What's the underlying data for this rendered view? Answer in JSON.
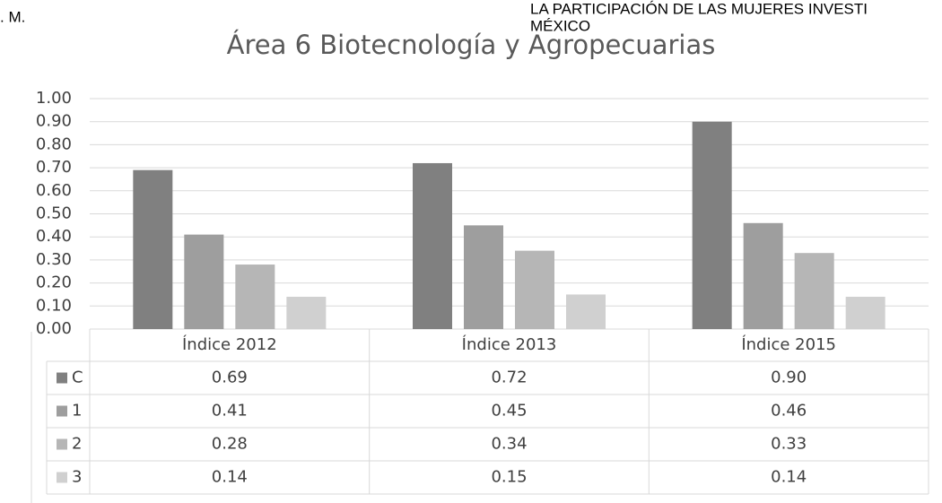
{
  "overlay_texts": {
    "left": ". M.",
    "right_lines": [
      "LA PARTICIPACIÓN DE LAS MUJERES INVESTI",
      "MÉXICO"
    ]
  },
  "chart_data": {
    "type": "bar",
    "title": "Área 6 Biotecnología y Agropecuarias",
    "categories": [
      "Índice 2012",
      "Índice 2013",
      "Índice 2015"
    ],
    "series": [
      {
        "name": "C",
        "color": "#808080",
        "values": [
          0.69,
          0.72,
          0.9
        ],
        "value_labels": [
          "0.69",
          "0.72",
          "0.90"
        ]
      },
      {
        "name": "1",
        "color": "#9e9e9e",
        "values": [
          0.41,
          0.45,
          0.46
        ],
        "value_labels": [
          "0.41",
          "0.45",
          "0.46"
        ]
      },
      {
        "name": "2",
        "color": "#b6b6b6",
        "values": [
          0.28,
          0.34,
          0.33
        ],
        "value_labels": [
          "0.28",
          "0.34",
          "0.33"
        ]
      },
      {
        "name": "3",
        "color": "#d0d0d0",
        "values": [
          0.14,
          0.15,
          0.14
        ],
        "value_labels": [
          "0.14",
          "0.15",
          "0.14"
        ]
      }
    ],
    "ylim": [
      0,
      1
    ],
    "yticks": [
      {
        "value": 0,
        "label": "0.00"
      },
      {
        "value": 0.1,
        "label": "0.10"
      },
      {
        "value": 0.2,
        "label": "0.20"
      },
      {
        "value": 0.3,
        "label": "0.30"
      },
      {
        "value": 0.4,
        "label": "0.40"
      },
      {
        "value": 0.5,
        "label": "0.50"
      },
      {
        "value": 0.6,
        "label": "0.60"
      },
      {
        "value": 0.7,
        "label": "0.70"
      },
      {
        "value": 0.8,
        "label": "0.80"
      },
      {
        "value": 0.9,
        "label": "0.90"
      },
      {
        "value": 1,
        "label": "1.00"
      }
    ],
    "grid": true,
    "legend": "table"
  }
}
